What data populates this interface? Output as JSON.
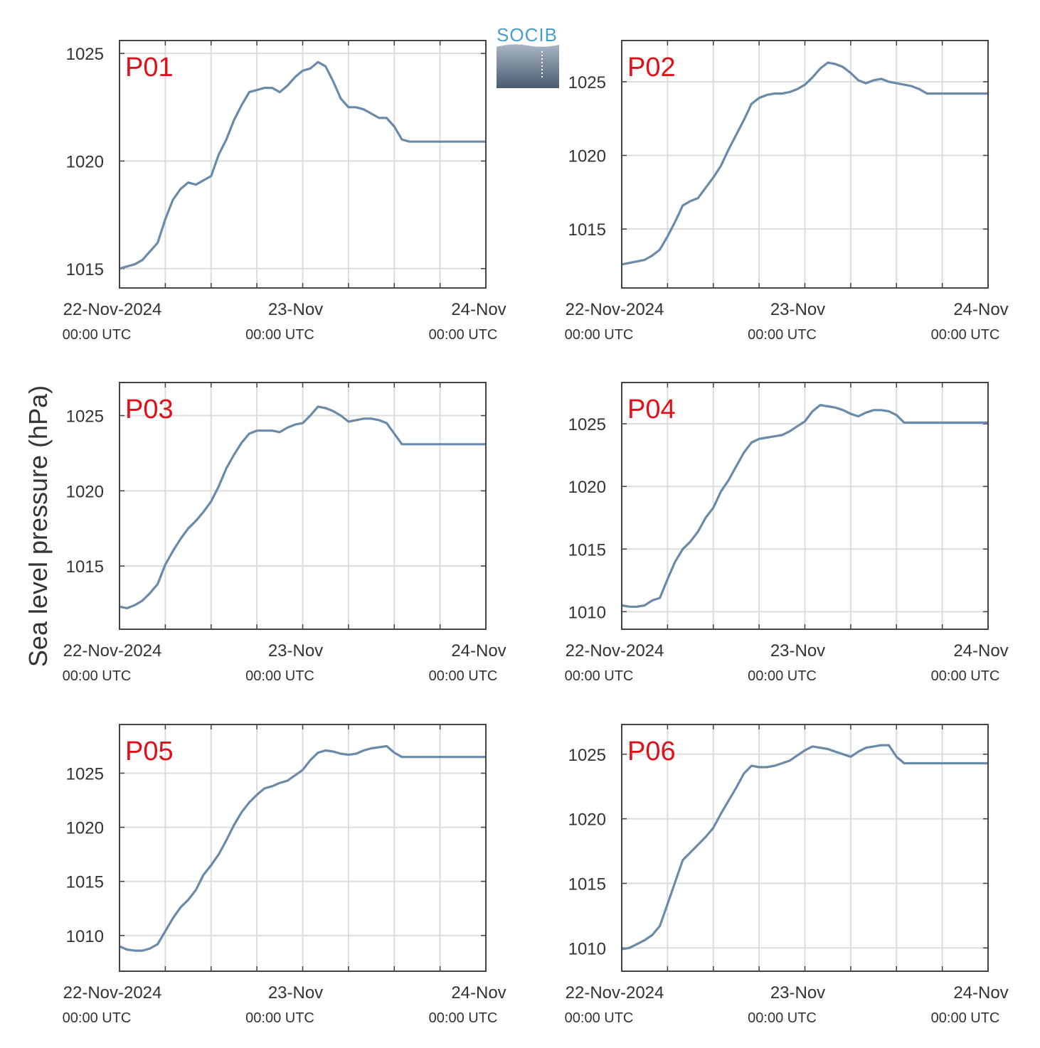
{
  "ylabel": "Sea level pressure (hPa)",
  "logo": {
    "text": "SOCIB"
  },
  "colors": {
    "line": "#6a8aaa",
    "grid": "#dddddd",
    "axis": "#444444",
    "panel_name": "#e0101a"
  },
  "chart_data": [
    {
      "type": "line",
      "name": "P01",
      "x_ticks": [
        {
          "label": "22-Nov-2024",
          "sub": "00:00 UTC"
        },
        {
          "label": "23-Nov",
          "sub": "00:00 UTC"
        },
        {
          "label": "24-Nov",
          "sub": "00:00 UTC"
        }
      ],
      "xlim": [
        0,
        48
      ],
      "ylim": [
        1014.1,
        1025.6
      ],
      "y_ticks": [
        1015,
        1020,
        1025
      ],
      "x": [
        0,
        1,
        2,
        3,
        4,
        5,
        6,
        7,
        8,
        9,
        10,
        11,
        12,
        13,
        14,
        15,
        16,
        17,
        18,
        19,
        20,
        21,
        22,
        23,
        24,
        25,
        26,
        27,
        28,
        29,
        30,
        31,
        32,
        33,
        34,
        35,
        36,
        37,
        38,
        39,
        40,
        41,
        42,
        43,
        44,
        45,
        46,
        47,
        48
      ],
      "values": [
        1015.0,
        1015.1,
        1015.2,
        1015.4,
        1015.8,
        1016.2,
        1017.3,
        1018.2,
        1018.7,
        1019.0,
        1018.9,
        1019.1,
        1019.3,
        1020.3,
        1021.0,
        1021.9,
        1022.6,
        1023.2,
        1023.3,
        1023.4,
        1023.4,
        1023.2,
        1023.5,
        1023.9,
        1024.2,
        1024.3,
        1024.6,
        1024.4,
        1023.7,
        1022.9,
        1022.5,
        1022.5,
        1022.4,
        1022.2,
        1022.0,
        1022.0,
        1021.6,
        1021.0,
        1020.9,
        1020.9,
        1020.9,
        1020.9,
        1020.9,
        1020.9,
        1020.9,
        1020.9,
        1020.9,
        1020.9,
        1020.9
      ],
      "x_end": 48
    },
    {
      "type": "line",
      "name": "P02",
      "x_ticks": [
        {
          "label": "22-Nov-2024",
          "sub": "00:00 UTC"
        },
        {
          "label": "23-Nov",
          "sub": "00:00 UTC"
        },
        {
          "label": "24-Nov",
          "sub": "00:00 UTC"
        }
      ],
      "xlim": [
        0,
        48
      ],
      "ylim": [
        1011.0,
        1027.8
      ],
      "y_ticks": [
        1015,
        1020,
        1025
      ],
      "x": [
        0,
        1,
        2,
        3,
        4,
        5,
        6,
        7,
        8,
        9,
        10,
        11,
        12,
        13,
        14,
        15,
        16,
        17,
        18,
        19,
        20,
        21,
        22,
        23,
        24,
        25,
        26,
        27,
        28,
        29,
        30,
        31,
        32,
        33,
        34,
        35,
        36,
        37,
        38,
        39,
        40,
        41,
        42,
        43,
        44,
        45,
        46,
        47,
        48
      ],
      "values": [
        1012.6,
        1012.7,
        1012.8,
        1012.9,
        1013.2,
        1013.6,
        1014.5,
        1015.5,
        1016.6,
        1016.9,
        1017.1,
        1017.8,
        1018.5,
        1019.3,
        1020.4,
        1021.4,
        1022.4,
        1023.5,
        1023.9,
        1024.1,
        1024.2,
        1024.2,
        1024.3,
        1024.5,
        1024.8,
        1025.3,
        1025.9,
        1026.3,
        1026.2,
        1026.0,
        1025.6,
        1025.1,
        1024.9,
        1025.1,
        1025.2,
        1025.0,
        1024.9,
        1024.8,
        1024.7,
        1024.5,
        1024.2,
        1024.2,
        1024.2,
        1024.2,
        1024.2,
        1024.2,
        1024.2,
        1024.2,
        1024.2
      ],
      "x_end": 48
    },
    {
      "type": "line",
      "name": "P03",
      "x_ticks": [
        {
          "label": "22-Nov-2024",
          "sub": "00:00 UTC"
        },
        {
          "label": "23-Nov",
          "sub": "00:00 UTC"
        },
        {
          "label": "24-Nov",
          "sub": "00:00 UTC"
        }
      ],
      "xlim": [
        0,
        48
      ],
      "ylim": [
        1010.8,
        1027.2
      ],
      "y_ticks": [
        1015,
        1020,
        1025
      ],
      "x": [
        0,
        1,
        2,
        3,
        4,
        5,
        6,
        7,
        8,
        9,
        10,
        11,
        12,
        13,
        14,
        15,
        16,
        17,
        18,
        19,
        20,
        21,
        22,
        23,
        24,
        25,
        26,
        27,
        28,
        29,
        30,
        31,
        32,
        33,
        34,
        35,
        36,
        37,
        38,
        39,
        40,
        41,
        42,
        43,
        44,
        45,
        46,
        47,
        48
      ],
      "values": [
        1012.3,
        1012.2,
        1012.4,
        1012.7,
        1013.2,
        1013.8,
        1015.1,
        1016.0,
        1016.8,
        1017.5,
        1018.0,
        1018.6,
        1019.3,
        1020.3,
        1021.5,
        1022.4,
        1023.2,
        1023.8,
        1024.0,
        1024.0,
        1024.0,
        1023.9,
        1024.2,
        1024.4,
        1024.5,
        1025.0,
        1025.6,
        1025.5,
        1025.3,
        1025.0,
        1024.6,
        1024.7,
        1024.8,
        1024.8,
        1024.7,
        1024.5,
        1023.8,
        1023.1,
        1023.1,
        1023.1,
        1023.1,
        1023.1,
        1023.1,
        1023.1,
        1023.1,
        1023.1,
        1023.1,
        1023.1,
        1023.1
      ],
      "x_end": 48
    },
    {
      "type": "line",
      "name": "P04",
      "x_ticks": [
        {
          "label": "22-Nov-2024",
          "sub": "00:00 UTC"
        },
        {
          "label": "23-Nov",
          "sub": "00:00 UTC"
        },
        {
          "label": "24-Nov",
          "sub": "00:00 UTC"
        }
      ],
      "xlim": [
        0,
        48
      ],
      "ylim": [
        1008.6,
        1028.3
      ],
      "y_ticks": [
        1010,
        1015,
        1020,
        1025
      ],
      "x": [
        0,
        1,
        2,
        3,
        4,
        5,
        6,
        7,
        8,
        9,
        10,
        11,
        12,
        13,
        14,
        15,
        16,
        17,
        18,
        19,
        20,
        21,
        22,
        23,
        24,
        25,
        26,
        27,
        28,
        29,
        30,
        31,
        32,
        33,
        34,
        35,
        36,
        37,
        38,
        39,
        40,
        41,
        42,
        43,
        44,
        45,
        46,
        47,
        48
      ],
      "values": [
        1010.5,
        1010.4,
        1010.4,
        1010.5,
        1010.9,
        1011.1,
        1012.6,
        1014.0,
        1015.0,
        1015.6,
        1016.4,
        1017.5,
        1018.3,
        1019.6,
        1020.5,
        1021.6,
        1022.7,
        1023.5,
        1023.8,
        1023.9,
        1024.0,
        1024.1,
        1024.4,
        1024.8,
        1025.2,
        1026.0,
        1026.5,
        1026.4,
        1026.3,
        1026.1,
        1025.8,
        1025.6,
        1025.9,
        1026.1,
        1026.1,
        1026.0,
        1025.7,
        1025.1,
        1025.1,
        1025.1,
        1025.1,
        1025.1,
        1025.1,
        1025.1,
        1025.1,
        1025.1,
        1025.1,
        1025.1,
        1025.1
      ],
      "x_end": 48
    },
    {
      "type": "line",
      "name": "P05",
      "x_ticks": [
        {
          "label": "22-Nov-2024",
          "sub": "00:00 UTC"
        },
        {
          "label": "23-Nov",
          "sub": "00:00 UTC"
        },
        {
          "label": "24-Nov",
          "sub": "00:00 UTC"
        }
      ],
      "xlim": [
        0,
        48
      ],
      "ylim": [
        1006.7,
        1029.5
      ],
      "y_ticks": [
        1010,
        1015,
        1020,
        1025
      ],
      "x": [
        0,
        1,
        2,
        3,
        4,
        5,
        6,
        7,
        8,
        9,
        10,
        11,
        12,
        13,
        14,
        15,
        16,
        17,
        18,
        19,
        20,
        21,
        22,
        23,
        24,
        25,
        26,
        27,
        28,
        29,
        30,
        31,
        32,
        33,
        34,
        35,
        36,
        37,
        38,
        39,
        40,
        41,
        42,
        43,
        44,
        45,
        46,
        47,
        48
      ],
      "values": [
        1009.0,
        1008.7,
        1008.6,
        1008.6,
        1008.8,
        1009.2,
        1010.4,
        1011.6,
        1012.6,
        1013.3,
        1014.2,
        1015.6,
        1016.5,
        1017.5,
        1018.8,
        1020.2,
        1021.4,
        1022.3,
        1023.0,
        1023.6,
        1023.8,
        1024.1,
        1024.3,
        1024.8,
        1025.3,
        1026.2,
        1026.9,
        1027.1,
        1027.0,
        1026.8,
        1026.7,
        1026.8,
        1027.1,
        1027.3,
        1027.4,
        1027.5,
        1026.9,
        1026.5,
        1026.5,
        1026.5,
        1026.5,
        1026.5,
        1026.5,
        1026.5,
        1026.5,
        1026.5,
        1026.5,
        1026.5,
        1026.5
      ],
      "x_end": 48
    },
    {
      "type": "line",
      "name": "P06",
      "x_ticks": [
        {
          "label": "22-Nov-2024",
          "sub": "00:00 UTC"
        },
        {
          "label": "23-Nov",
          "sub": "00:00 UTC"
        },
        {
          "label": "24-Nov",
          "sub": "00:00 UTC"
        }
      ],
      "xlim": [
        0,
        48
      ],
      "ylim": [
        1008.2,
        1027.3
      ],
      "y_ticks": [
        1010,
        1015,
        1020,
        1025
      ],
      "x": [
        0,
        1,
        2,
        3,
        4,
        5,
        6,
        7,
        8,
        9,
        10,
        11,
        12,
        13,
        14,
        15,
        16,
        17,
        18,
        19,
        20,
        21,
        22,
        23,
        24,
        25,
        26,
        27,
        28,
        29,
        30,
        31,
        32,
        33,
        34,
        35,
        36,
        37,
        38,
        39,
        40,
        41,
        42,
        43,
        44,
        45,
        46,
        47,
        48
      ],
      "values": [
        1009.9,
        1010.0,
        1010.3,
        1010.6,
        1011.0,
        1011.7,
        1013.4,
        1015.1,
        1016.8,
        1017.4,
        1018.0,
        1018.6,
        1019.3,
        1020.4,
        1021.4,
        1022.4,
        1023.5,
        1024.1,
        1024.0,
        1024.0,
        1024.1,
        1024.3,
        1024.5,
        1024.9,
        1025.3,
        1025.6,
        1025.5,
        1025.4,
        1025.2,
        1025.0,
        1024.8,
        1025.2,
        1025.5,
        1025.6,
        1025.7,
        1025.7,
        1024.8,
        1024.3,
        1024.3,
        1024.3,
        1024.3,
        1024.3,
        1024.3,
        1024.3,
        1024.3,
        1024.3,
        1024.3,
        1024.3,
        1024.3
      ],
      "x_end": 48
    }
  ]
}
